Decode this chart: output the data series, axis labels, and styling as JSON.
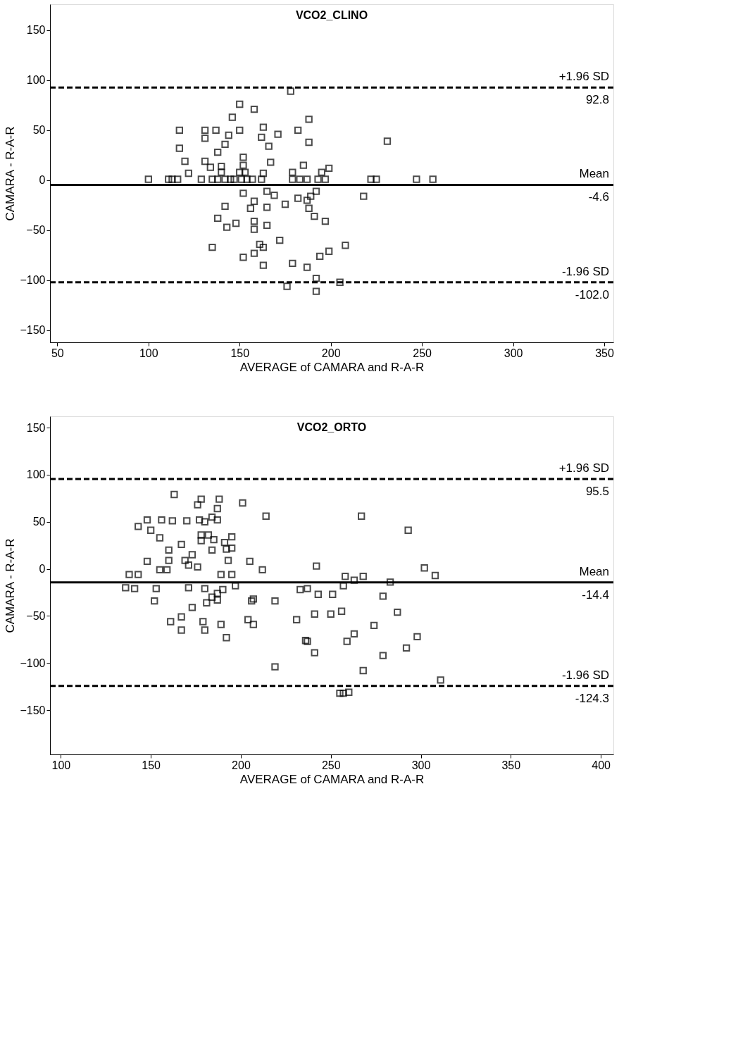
{
  "chart_data": [
    {
      "type": "scatter",
      "title": "VCO2_CLINO",
      "xlabel": "AVERAGE of CAMARA and R-A-R",
      "ylabel": "CAMARA - R-A-R",
      "marker": "square",
      "xlim": [
        46,
        355
      ],
      "ylim": [
        -162,
        176
      ],
      "xticks": [
        50,
        100,
        150,
        200,
        250,
        300,
        350
      ],
      "yticks": [
        -150,
        -100,
        -50,
        0,
        50,
        100,
        150
      ],
      "series": [
        {
          "color": "#000000",
          "x": [
            178,
            150,
            158,
            146,
            188,
            117,
            131,
            137,
            150,
            163,
            171,
            182,
            144,
            131,
            162,
            142,
            166,
            188,
            117,
            138,
            120,
            131,
            152,
            167,
            134,
            140,
            152,
            185,
            199,
            122,
            140,
            150,
            153,
            163,
            179,
            195,
            100,
            111,
            113,
            116,
            129,
            135,
            138,
            142,
            145,
            147,
            151,
            154,
            157,
            162,
            179,
            183,
            187,
            193,
            197,
            222,
            225,
            247,
            256,
            152,
            165,
            169,
            158,
            156,
            165,
            142,
            175,
            182,
            187,
            189,
            192,
            188,
            191,
            138,
            143,
            148,
            158,
            158,
            165,
            197,
            135,
            172,
            161,
            163,
            158,
            152,
            163,
            179,
            187,
            194,
            199,
            208,
            192,
            176,
            205,
            192,
            218,
            231
          ],
          "values": [
            89,
            76,
            71,
            63,
            61,
            50,
            50,
            50,
            50,
            53,
            46,
            50,
            45,
            42,
            43,
            36,
            34,
            38,
            32,
            28,
            19,
            19,
            23,
            18,
            13,
            14,
            15,
            15,
            12,
            7,
            8,
            8,
            8,
            7,
            8,
            8,
            1,
            1,
            1,
            1,
            1,
            1,
            1,
            1,
            1,
            1,
            1,
            1,
            1,
            1,
            1,
            1,
            1,
            1,
            1,
            1,
            1,
            1,
            1,
            -13,
            -11,
            -15,
            -21,
            -28,
            -27,
            -26,
            -24,
            -18,
            -20,
            -16,
            -11,
            -28,
            -36,
            -38,
            -47,
            -43,
            -41,
            -49,
            -45,
            -41,
            -67,
            -60,
            -64,
            -67,
            -73,
            -77,
            -85,
            -83,
            -87,
            -76,
            -71,
            -65,
            -98,
            -106,
            -102,
            -111,
            -16,
            39
          ]
        }
      ],
      "ref_lines": [
        {
          "axis": "y",
          "value": 92.8,
          "label": "+1.96 SD",
          "line_style": "dashed",
          "color": "#000000"
        },
        {
          "axis": "y",
          "value": -4.6,
          "label": "Mean",
          "line_style": "solid",
          "color": "#000000"
        },
        {
          "axis": "y",
          "value": -102.0,
          "label": "-1.96 SD",
          "line_style": "dashed",
          "color": "#000000"
        }
      ],
      "annotations": [
        {
          "text": "92.8",
          "y": 92.8
        },
        {
          "text": "-4.6",
          "y": -4.6
        },
        {
          "text": "-102.0",
          "y": -102.0
        }
      ]
    },
    {
      "type": "scatter",
      "title": "VCO2_ORTO",
      "xlabel": "AVERAGE of CAMARA and R-A-R",
      "ylabel": "CAMARA - R-A-R",
      "marker": "square",
      "xlim": [
        94,
        407
      ],
      "ylim": [
        -197,
        162
      ],
      "xticks": [
        100,
        150,
        200,
        250,
        300,
        350,
        400
      ],
      "yticks": [
        -150,
        -100,
        -50,
        0,
        50,
        100,
        150
      ],
      "series": [
        {
          "color": "#000000",
          "x": [
            163,
            176,
            178,
            188,
            187,
            201,
            148,
            143,
            156,
            162,
            170,
            177,
            180,
            184,
            187,
            214,
            150,
            155,
            178,
            182,
            178,
            185,
            195,
            191,
            195,
            192,
            167,
            160,
            184,
            173,
            169,
            171,
            176,
            160,
            148,
            193,
            205,
            212,
            155,
            159,
            189,
            195,
            138,
            143,
            136,
            141,
            153,
            171,
            180,
            190,
            197,
            187,
            184,
            187,
            181,
            152,
            173,
            206,
            207,
            167,
            161,
            179,
            189,
            204,
            207,
            167,
            180,
            192,
            267,
            293,
            242,
            258,
            263,
            268,
            283,
            302,
            308,
            257,
            233,
            237,
            243,
            251,
            279,
            219,
            241,
            250,
            256,
            287,
            231,
            274,
            236,
            237,
            241,
            259,
            263,
            298,
            292,
            279,
            219,
            268,
            311,
            255,
            257,
            260
          ],
          "values": [
            79,
            68,
            74,
            74,
            64,
            70,
            52,
            45,
            52,
            51,
            51,
            52,
            50,
            55,
            52,
            56,
            41,
            33,
            36,
            36,
            30,
            31,
            34,
            28,
            22,
            21,
            26,
            20,
            20,
            15,
            9,
            4,
            2,
            9,
            8,
            9,
            8,
            -1,
            -1,
            -1,
            -6,
            -6,
            -6,
            -6,
            -20,
            -21,
            -21,
            -20,
            -21,
            -22,
            -18,
            -26,
            -30,
            -33,
            -36,
            -34,
            -41,
            -34,
            -32,
            -51,
            -56,
            -56,
            -59,
            -54,
            -59,
            -65,
            -65,
            -73,
            56,
            41,
            3,
            -8,
            -12,
            -8,
            -14,
            1,
            -7,
            -18,
            -22,
            -21,
            -27,
            -27,
            -29,
            -34,
            -48,
            -48,
            -45,
            -46,
            -54,
            -60,
            -76,
            -77,
            -89,
            -77,
            -69,
            -72,
            -84,
            -92,
            -104,
            -108,
            -118,
            -132,
            -132,
            -131
          ]
        }
      ],
      "ref_lines": [
        {
          "axis": "y",
          "value": 95.5,
          "label": "+1.96 SD",
          "line_style": "dashed",
          "color": "#000000"
        },
        {
          "axis": "y",
          "value": -14.4,
          "label": "Mean",
          "line_style": "solid",
          "color": "#000000"
        },
        {
          "axis": "y",
          "value": -124.3,
          "label": "-1.96 SD",
          "line_style": "dashed",
          "color": "#000000"
        }
      ],
      "annotations": [
        {
          "text": "95.5",
          "y": 95.5
        },
        {
          "text": "-14.4",
          "y": -14.4
        },
        {
          "text": "-124.3",
          "y": -124.3
        }
      ]
    }
  ]
}
